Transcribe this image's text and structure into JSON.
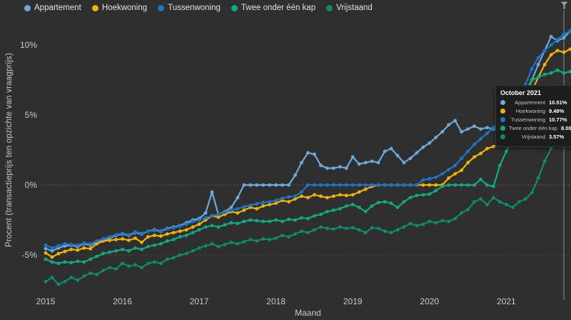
{
  "app": {
    "background": "#2f2f2f"
  },
  "axes": {
    "x_title": "Maand",
    "y_title": "Procent (transactieprijs ten opzichte van vraagprijs)",
    "y_ticks": [
      {
        "label": "10%",
        "value": 10
      },
      {
        "label": "5%",
        "value": 5
      },
      {
        "label": "0%",
        "value": 0
      },
      {
        "label": "-5%",
        "value": -5
      }
    ],
    "x_ticks": [
      {
        "label": "2015",
        "month_index": 0
      },
      {
        "label": "2016",
        "month_index": 12
      },
      {
        "label": "2017",
        "month_index": 24
      },
      {
        "label": "2018",
        "month_index": 36
      },
      {
        "label": "2019",
        "month_index": 48
      },
      {
        "label": "2020",
        "month_index": 60
      },
      {
        "label": "2021",
        "month_index": 72
      }
    ]
  },
  "tooltip": {
    "title": "October 2021",
    "anchor_month_index": 81,
    "rows": [
      {
        "label": "Appartement",
        "value": "10.51%",
        "color": "#6CA9DE"
      },
      {
        "label": "Hoekwoning",
        "value": "9.49%",
        "color": "#F0B400"
      },
      {
        "label": "Tussenwoning",
        "value": "10.77%",
        "color": "#1F74C4"
      },
      {
        "label": "Twee onder één kap",
        "value": "8.00%",
        "color": "#11A984"
      },
      {
        "label": "Vrijstaand",
        "value": "3.57%",
        "color": "#0E8A6E"
      }
    ]
  },
  "icons": {
    "filter": "funnel-icon",
    "filter_color": "#9b9b9b"
  },
  "chart_data": {
    "type": "line",
    "title": "",
    "xlabel": "Maand",
    "ylabel": "Procent (transactieprijs ten opzichte van vraagprijs)",
    "x_unit": "month",
    "x_start": "2015-01",
    "x_end": "2021-11",
    "ylim": [
      -8.5,
      12
    ],
    "grid": "horizontal-dotted",
    "legend_position": "top-left",
    "marker": "circle",
    "series": [
      {
        "name": "Appartement",
        "color": "#6CA9DE",
        "values": [
          -4.55,
          -4.7,
          -4.5,
          -4.35,
          -4.3,
          -4.4,
          -4.2,
          -4.3,
          -4.1,
          -3.9,
          -3.8,
          -3.6,
          -3.5,
          -3.6,
          -3.4,
          -3.5,
          -3.3,
          -3.2,
          -3.3,
          -3.1,
          -3.0,
          -2.9,
          -2.7,
          -2.5,
          -2.4,
          -2.0,
          -0.5,
          -2.1,
          -1.9,
          -1.6,
          -0.9,
          0,
          0,
          0,
          0,
          0,
          0,
          0,
          0,
          0.7,
          1.6,
          2.3,
          2.2,
          1.4,
          1.2,
          1.2,
          1.3,
          1.2,
          2.0,
          1.5,
          1.6,
          1.7,
          1.6,
          2.4,
          2.6,
          2.1,
          1.6,
          1.9,
          2.3,
          2.7,
          3.0,
          3.4,
          3.8,
          4.3,
          4.6,
          3.8,
          4.0,
          4.2,
          4.0,
          4.1,
          4.0,
          4.4,
          4.8,
          5.4,
          6.0,
          6.7,
          7.5,
          8.6,
          9.6,
          10.6,
          10.3,
          10.51,
          11.0
        ]
      },
      {
        "name": "Hoekwoning",
        "color": "#F0B400",
        "values": [
          -4.85,
          -5.15,
          -4.9,
          -4.75,
          -4.6,
          -4.65,
          -4.5,
          -4.55,
          -4.2,
          -4.0,
          -3.95,
          -3.9,
          -3.85,
          -3.95,
          -3.8,
          -4.1,
          -3.7,
          -3.6,
          -3.65,
          -3.5,
          -3.4,
          -3.3,
          -3.2,
          -3.0,
          -2.8,
          -2.5,
          -2.2,
          -2.3,
          -2.1,
          -1.9,
          -2.0,
          -1.8,
          -1.6,
          -1.7,
          -1.5,
          -1.4,
          -1.3,
          -1.1,
          -1.2,
          -1.0,
          -0.8,
          -0.9,
          -0.7,
          -0.8,
          -0.9,
          -0.8,
          -0.7,
          -0.75,
          -0.7,
          -0.5,
          -0.3,
          -0.1,
          0,
          0,
          0,
          0,
          0,
          0,
          0,
          0,
          0,
          0,
          0,
          0.5,
          0.8,
          1.05,
          1.6,
          2.0,
          2.25,
          2.6,
          2.75,
          2.9,
          3.1,
          3.5,
          4.4,
          5.6,
          6.7,
          7.7,
          8.6,
          9.3,
          9.6,
          9.49,
          9.7
        ]
      },
      {
        "name": "Tussenwoning",
        "color": "#1F74C4",
        "values": [
          -4.3,
          -4.5,
          -4.35,
          -4.2,
          -4.25,
          -4.3,
          -4.15,
          -4.2,
          -4.0,
          -3.85,
          -3.7,
          -3.55,
          -3.45,
          -3.55,
          -3.35,
          -3.45,
          -3.3,
          -3.25,
          -3.35,
          -3.15,
          -3.05,
          -2.95,
          -2.8,
          -2.6,
          -2.5,
          -2.35,
          -2.2,
          -2.1,
          -1.95,
          -1.8,
          -1.7,
          -1.55,
          -1.45,
          -1.35,
          -1.25,
          -1.2,
          -1.1,
          -0.95,
          -0.85,
          -0.8,
          -0.5,
          0,
          0,
          0,
          0,
          0,
          0,
          0,
          0,
          0,
          0,
          0,
          0,
          0,
          0,
          0,
          0,
          0,
          0,
          0.35,
          0.45,
          0.55,
          0.8,
          1.1,
          1.4,
          1.9,
          2.4,
          2.9,
          3.3,
          3.7,
          4.1,
          4.6,
          5.2,
          5.8,
          6.4,
          7.2,
          8.3,
          9.1,
          9.6,
          10.0,
          10.4,
          10.77,
          11.0
        ]
      },
      {
        "name": "Twee onder één kap",
        "color": "#11A984",
        "values": [
          -5.3,
          -5.5,
          -5.6,
          -5.5,
          -5.55,
          -5.45,
          -5.5,
          -5.3,
          -5.1,
          -4.9,
          -4.8,
          -4.7,
          -4.6,
          -4.7,
          -4.5,
          -4.6,
          -4.4,
          -4.3,
          -4.2,
          -4.0,
          -3.9,
          -3.7,
          -3.6,
          -3.4,
          -3.2,
          -3.0,
          -2.9,
          -3.0,
          -2.85,
          -2.7,
          -2.75,
          -2.6,
          -2.5,
          -2.55,
          -2.6,
          -2.6,
          -2.5,
          -2.6,
          -2.45,
          -2.5,
          -2.35,
          -2.4,
          -2.2,
          -2.1,
          -1.9,
          -1.8,
          -1.7,
          -1.5,
          -1.4,
          -1.6,
          -1.9,
          -1.5,
          -1.25,
          -1.2,
          -1.3,
          -1.6,
          -1.2,
          -0.9,
          -0.75,
          -0.7,
          -0.65,
          -0.4,
          -0.1,
          0,
          0,
          0,
          0,
          0,
          0.4,
          0,
          -0.1,
          1.4,
          2.4,
          3.4,
          4.5,
          6.0,
          7.5,
          7.7,
          7.9,
          8.0,
          8.2,
          8.0,
          8.1
        ]
      },
      {
        "name": "Vrijstaand",
        "color": "#0E8A6E",
        "values": [
          -6.9,
          -6.6,
          -7.1,
          -6.9,
          -6.6,
          -6.8,
          -6.5,
          -6.3,
          -6.4,
          -6.1,
          -5.9,
          -6.0,
          -5.6,
          -5.8,
          -5.7,
          -5.9,
          -5.6,
          -5.5,
          -5.6,
          -5.3,
          -5.2,
          -5.0,
          -4.9,
          -4.7,
          -4.5,
          -4.35,
          -4.2,
          -4.4,
          -4.25,
          -4.1,
          -4.2,
          -4.05,
          -3.9,
          -4.0,
          -3.85,
          -3.9,
          -3.8,
          -3.6,
          -3.7,
          -3.5,
          -3.3,
          -3.4,
          -3.2,
          -3.0,
          -3.1,
          -3.15,
          -3.0,
          -3.1,
          -3.05,
          -3.2,
          -3.4,
          -3.05,
          -3.1,
          -3.3,
          -3.4,
          -3.2,
          -3.0,
          -2.75,
          -2.9,
          -2.8,
          -2.6,
          -2.7,
          -2.55,
          -2.6,
          -2.4,
          -2.0,
          -1.75,
          -1.2,
          -1.0,
          -1.4,
          -0.9,
          -1.2,
          -1.4,
          -1.6,
          -1.2,
          -1.0,
          -0.55,
          0.5,
          1.7,
          2.6,
          3.2,
          3.57,
          4.6
        ]
      }
    ]
  }
}
